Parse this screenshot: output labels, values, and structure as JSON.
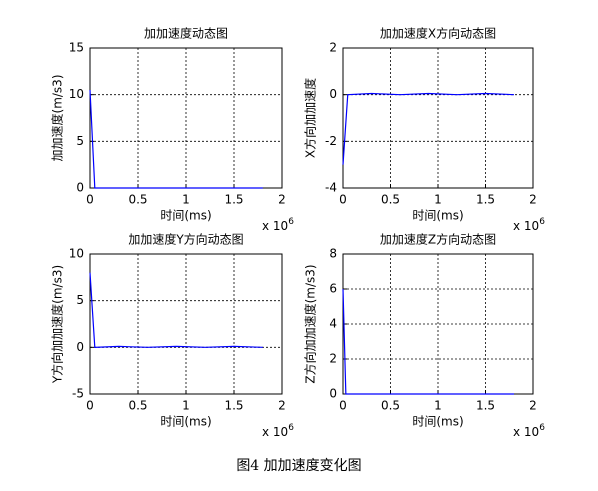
{
  "chart_data": [
    {
      "type": "line",
      "title": "加加速度动态图",
      "xlabel": "时间(ms)",
      "ylabel": "加加速度(m/s3)",
      "x_multiplier": {
        "base": "x 10",
        "exponent": "6"
      },
      "x": [
        0,
        0.05,
        0.3,
        0.6,
        0.9,
        1.2,
        1.5,
        1.8
      ],
      "values": [
        10.5,
        0,
        0,
        0,
        0,
        0,
        0,
        0
      ],
      "color": "#0000ff",
      "xlim": [
        0,
        2
      ],
      "xticks": [
        0,
        0.5,
        1,
        1.5,
        2
      ],
      "ylim": [
        0,
        15
      ],
      "yticks": [
        0,
        5,
        10,
        15
      ],
      "grid": true
    },
    {
      "type": "line",
      "title": "加加速度X方向动态图",
      "xlabel": "时间(ms)",
      "ylabel": "X方向加加速度",
      "x_multiplier": {
        "base": "x 10",
        "exponent": "6"
      },
      "x": [
        0,
        0.05,
        0.3,
        0.6,
        0.9,
        1.2,
        1.5,
        1.8
      ],
      "values": [
        -3,
        0,
        0.05,
        0,
        0.05,
        0,
        0.05,
        0
      ],
      "color": "#0000ff",
      "xlim": [
        0,
        2
      ],
      "xticks": [
        0,
        0.5,
        1,
        1.5,
        2
      ],
      "ylim": [
        -4,
        2
      ],
      "yticks": [
        -4,
        -2,
        0,
        2
      ],
      "grid": true
    },
    {
      "type": "line",
      "title": "加加速度Y方向动态图",
      "xlabel": "时间(ms)",
      "ylabel": "Y方向加加速度(m/s3)",
      "x_multiplier": {
        "base": "x 10",
        "exponent": "6"
      },
      "x": [
        0,
        0.05,
        0.3,
        0.6,
        0.9,
        1.2,
        1.5,
        1.8
      ],
      "values": [
        8,
        0,
        0.1,
        0,
        0.1,
        0,
        0.1,
        0
      ],
      "color": "#0000ff",
      "xlim": [
        0,
        2
      ],
      "xticks": [
        0,
        0.5,
        1,
        1.5,
        2
      ],
      "ylim": [
        -5,
        10
      ],
      "yticks": [
        -5,
        0,
        5,
        10
      ],
      "grid": true
    },
    {
      "type": "line",
      "title": "加加速度Z方向动态图",
      "xlabel": "时间(ms)",
      "ylabel": "Z方向加加速度(m/s3)",
      "x_multiplier": {
        "base": "x 10",
        "exponent": "6"
      },
      "x": [
        0,
        0.03,
        0.3,
        0.6,
        0.9,
        1.2,
        1.5,
        1.8
      ],
      "values": [
        6,
        0,
        0,
        0,
        0,
        0,
        0,
        0
      ],
      "color": "#0000ff",
      "xlim": [
        0,
        2
      ],
      "xticks": [
        0,
        0.5,
        1,
        1.5,
        2
      ],
      "ylim": [
        0,
        8
      ],
      "yticks": [
        0,
        2,
        4,
        6,
        8
      ],
      "grid": true
    }
  ],
  "caption": "图4 加加速度变化图"
}
